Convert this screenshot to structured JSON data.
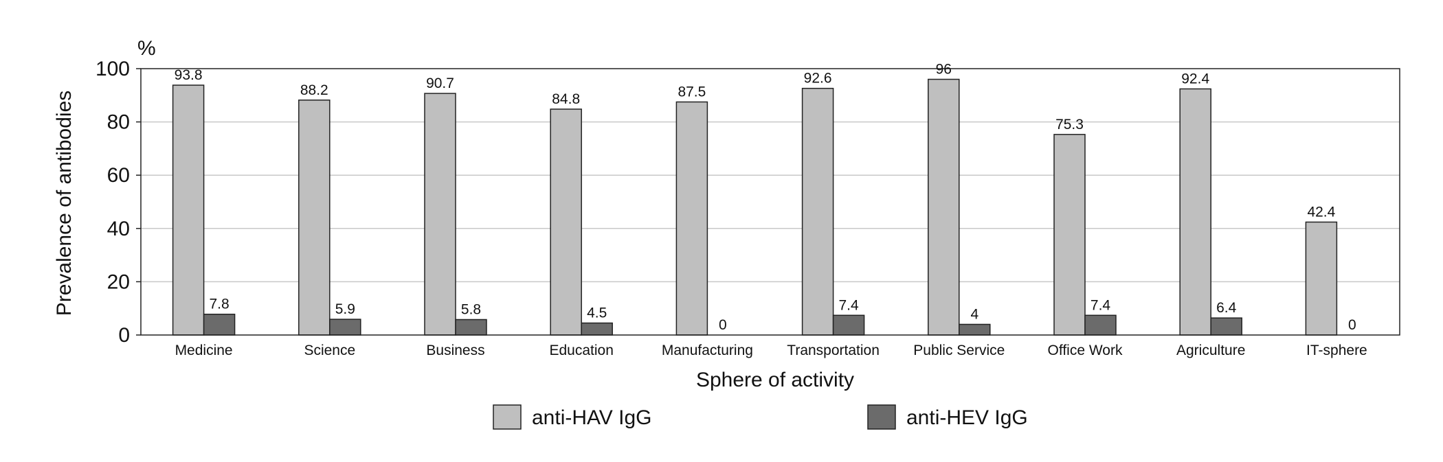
{
  "chart_data": {
    "type": "bar",
    "title": "",
    "unit": "%",
    "xlabel": "Sphere of activity",
    "ylabel": "Prevalence of antibodies",
    "ylim": [
      0,
      100
    ],
    "yticks": [
      0,
      20,
      40,
      60,
      80,
      100
    ],
    "grid": true,
    "legend_position": "bottom",
    "categories": [
      "Medicine",
      "Science",
      "Business",
      "Education",
      "Manufacturing",
      "Transportation",
      "Public Service",
      "Office Work",
      "Agriculture",
      "IT-sphere"
    ],
    "series": [
      {
        "name": "anti-HAV IgG",
        "color": "#bfbfbf",
        "values": [
          93.8,
          88.2,
          90.7,
          84.8,
          87.5,
          92.6,
          96,
          75.3,
          92.4,
          42.4
        ]
      },
      {
        "name": "anti-HEV IgG",
        "color": "#6b6b6b",
        "values": [
          7.8,
          5.9,
          5.8,
          4.5,
          0,
          7.4,
          4,
          7.4,
          6.4,
          0
        ]
      }
    ]
  }
}
